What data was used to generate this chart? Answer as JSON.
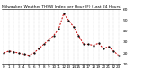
{
  "title": "Milwaukee Weather THSW Index per Hour (F) (Last 24 Hours)",
  "hours": [
    0,
    1,
    2,
    3,
    4,
    5,
    6,
    7,
    8,
    9,
    10,
    11,
    12,
    13,
    14,
    15,
    16,
    17,
    18,
    19,
    20,
    21,
    22,
    23
  ],
  "values": [
    20,
    22,
    21,
    20,
    19,
    18,
    20,
    24,
    28,
    32,
    36,
    42,
    56,
    50,
    44,
    36,
    28,
    28,
    27,
    29,
    24,
    26,
    22,
    18
  ],
  "line_color": "#cc0000",
  "marker_color": "#000000",
  "bg_color": "#ffffff",
  "plot_bg_color": "#ffffff",
  "grid_color": "#bbbbbb",
  "ylim": [
    10,
    60
  ],
  "yticks": [
    10,
    20,
    30,
    40,
    50,
    60
  ],
  "ylabel_fontsize": 3.2,
  "xlabel_fontsize": 3.0,
  "title_fontsize": 3.2,
  "line_width": 0.7,
  "marker_size": 1.2,
  "dpi": 100,
  "fig_width": 1.6,
  "fig_height": 0.87
}
